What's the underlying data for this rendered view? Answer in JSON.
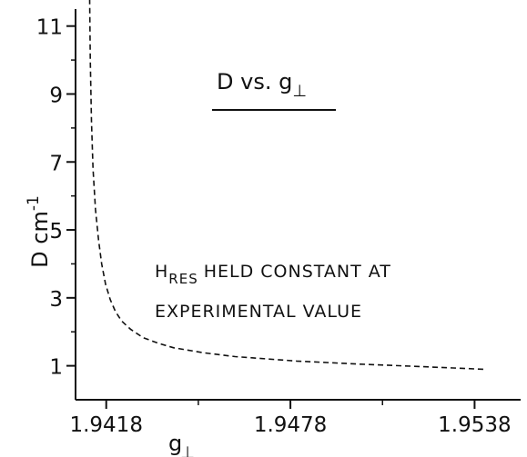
{
  "chart_data": {
    "type": "line",
    "title": "D vs. g⊥",
    "xlabel": "g⊥",
    "ylabel": "D  cm⁻¹",
    "xlim": [
      1.9408,
      1.9553
    ],
    "ylim": [
      0,
      11.5
    ],
    "x_ticks": [
      {
        "value": 1.9418,
        "label": "1.9418"
      },
      {
        "value": 1.9478,
        "label": "1.9478"
      },
      {
        "value": 1.9538,
        "label": "1.9538"
      }
    ],
    "x_minor_ticks": [
      1.9448,
      1.9508
    ],
    "y_ticks": [
      {
        "value": 1,
        "label": "1"
      },
      {
        "value": 3,
        "label": "3"
      },
      {
        "value": 5,
        "label": "5"
      },
      {
        "value": 7,
        "label": "7"
      },
      {
        "value": 9,
        "label": "9"
      },
      {
        "value": 11,
        "label": "11"
      }
    ],
    "y_minor_ticks": [
      2,
      4,
      6,
      8,
      10
    ],
    "line_style": "dashed",
    "series": [
      {
        "x": [
          1.94126,
          1.94128,
          1.94132,
          1.94137,
          1.94145,
          1.94155,
          1.94165,
          1.94178,
          1.94193,
          1.9421,
          1.9423,
          1.9426,
          1.943,
          1.9435,
          1.944,
          1.945,
          1.946,
          1.948,
          1.95,
          1.952,
          1.954,
          1.9542
        ],
        "y": [
          11.8,
          10.0,
          8.2,
          6.8,
          5.6,
          4.7,
          4.0,
          3.4,
          2.95,
          2.6,
          2.32,
          2.07,
          1.83,
          1.66,
          1.53,
          1.38,
          1.27,
          1.14,
          1.05,
          0.98,
          0.9,
          0.89
        ]
      }
    ],
    "annotations": [
      "H",
      "RES",
      "HELD CONSTANT AT",
      "EXPERIMENTAL VALUE"
    ]
  }
}
